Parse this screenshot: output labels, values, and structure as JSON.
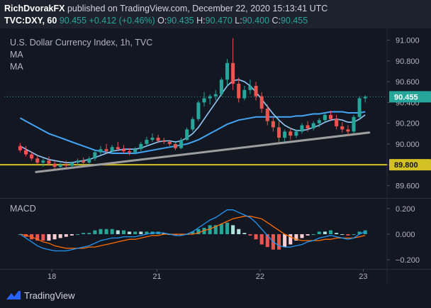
{
  "header": {
    "author": "RichDvorakFX",
    "published_text": "published on TradingView.com, December 22, 2020 15:13:41 UTC",
    "symbol": "TVC:DXY, 60",
    "last": "90.455",
    "change": "+0.412 (+0.46%)",
    "o_label": "O:",
    "o_value": "90.435",
    "h_label": "H:",
    "h_value": "90.470",
    "l_label": "L:",
    "l_value": "90.400",
    "c_label": "C:",
    "c_value": "90.455"
  },
  "legend": {
    "title": "U.S. Dollar Currency Index, 1h, TVC",
    "ma1": "MA",
    "ma2": "MA",
    "macd": "MACD"
  },
  "price_badge": "90.455",
  "support_badge": "89.800",
  "footer": {
    "brand": "TradingView"
  },
  "colors": {
    "background": "#131722",
    "up": "#26a69a",
    "down": "#ef5350",
    "ma_fast": "#90caf9",
    "ma_slow": "#42a5f5",
    "trendline": "#9e9e9e",
    "support": "#d4c224",
    "macd_line": "#2196f3",
    "signal_line": "#ff6d00"
  },
  "chart_data": [
    {
      "type": "candlestick",
      "ylim": [
        89.5,
        91.1
      ],
      "y_ticks": [
        89.6,
        89.8,
        90.0,
        90.2,
        90.4,
        90.6,
        90.8,
        91.0
      ],
      "y_tick_labels": [
        "89.600",
        "89.800",
        "90.000",
        "90.200",
        "90.400",
        "90.600",
        "90.800",
        "91.000"
      ],
      "x_tick_labels": [
        "18",
        "21",
        "22",
        "23"
      ],
      "x_tick_positions": [
        24,
        77,
        129,
        181
      ],
      "x_range": [
        0,
        193
      ],
      "candles": [
        [
          89.98,
          90.01,
          89.92,
          89.94
        ],
        [
          89.94,
          89.98,
          89.88,
          89.9
        ],
        [
          89.9,
          89.93,
          89.84,
          89.86
        ],
        [
          89.86,
          89.89,
          89.8,
          89.82
        ],
        [
          89.82,
          89.86,
          89.78,
          89.84
        ],
        [
          89.84,
          89.88,
          89.79,
          89.81
        ],
        [
          89.81,
          89.84,
          89.76,
          89.78
        ],
        [
          89.78,
          89.82,
          89.76,
          89.8
        ],
        [
          89.8,
          89.84,
          89.77,
          89.79
        ],
        [
          89.79,
          89.83,
          89.77,
          89.82
        ],
        [
          89.82,
          89.86,
          89.79,
          89.84
        ],
        [
          89.84,
          89.87,
          89.8,
          89.82
        ],
        [
          89.82,
          89.88,
          89.81,
          89.86
        ],
        [
          89.86,
          89.94,
          89.84,
          89.92
        ],
        [
          89.92,
          89.98,
          89.9,
          89.95
        ],
        [
          89.95,
          90.0,
          89.91,
          89.93
        ],
        [
          89.93,
          89.99,
          89.91,
          89.97
        ],
        [
          89.97,
          90.02,
          89.93,
          89.95
        ],
        [
          89.95,
          89.99,
          89.91,
          89.93
        ],
        [
          89.93,
          89.96,
          89.89,
          89.92
        ],
        [
          89.92,
          89.97,
          89.9,
          89.95
        ],
        [
          89.95,
          90.02,
          89.93,
          90.0
        ],
        [
          90.0,
          90.07,
          89.98,
          90.04
        ],
        [
          90.04,
          90.1,
          90.02,
          90.06
        ],
        [
          90.06,
          90.09,
          90.01,
          90.03
        ],
        [
          90.03,
          90.06,
          90.0,
          90.02
        ],
        [
          90.02,
          90.04,
          89.98,
          90.0
        ],
        [
          90.0,
          90.01,
          89.94,
          89.96
        ],
        [
          89.96,
          90.06,
          89.95,
          90.04
        ],
        [
          90.04,
          90.16,
          90.03,
          90.14
        ],
        [
          90.14,
          90.26,
          90.12,
          90.24
        ],
        [
          90.24,
          90.42,
          90.22,
          90.4
        ],
        [
          90.4,
          90.5,
          90.36,
          90.44
        ],
        [
          90.44,
          90.48,
          90.38,
          90.46
        ],
        [
          90.46,
          90.52,
          90.42,
          90.48
        ],
        [
          90.48,
          90.64,
          90.46,
          90.62
        ],
        [
          90.62,
          90.82,
          90.56,
          90.78
        ],
        [
          90.78,
          91.02,
          90.52,
          90.58
        ],
        [
          90.58,
          90.64,
          90.4,
          90.44
        ],
        [
          90.44,
          90.56,
          90.42,
          90.52
        ],
        [
          90.52,
          90.62,
          90.48,
          90.56
        ],
        [
          90.56,
          90.6,
          90.42,
          90.46
        ],
        [
          90.46,
          90.5,
          90.3,
          90.34
        ],
        [
          90.34,
          90.38,
          90.18,
          90.22
        ],
        [
          90.22,
          90.26,
          90.12,
          90.16
        ],
        [
          90.16,
          90.22,
          90.02,
          90.06
        ],
        [
          90.06,
          90.14,
          90.02,
          90.12
        ],
        [
          90.12,
          90.16,
          90.04,
          90.08
        ],
        [
          90.08,
          90.14,
          90.06,
          90.12
        ],
        [
          90.12,
          90.2,
          90.1,
          90.18
        ],
        [
          90.18,
          90.22,
          90.12,
          90.15
        ],
        [
          90.15,
          90.22,
          90.13,
          90.2
        ],
        [
          90.2,
          90.25,
          90.16,
          90.23
        ],
        [
          90.23,
          90.3,
          90.21,
          90.28
        ],
        [
          90.28,
          90.32,
          90.22,
          90.24
        ],
        [
          90.24,
          90.28,
          90.14,
          90.17
        ],
        [
          90.17,
          90.21,
          90.11,
          90.14
        ],
        [
          90.14,
          90.18,
          90.08,
          90.12
        ],
        [
          90.12,
          90.28,
          90.1,
          90.26
        ],
        [
          90.26,
          90.46,
          90.24,
          90.44
        ],
        [
          90.44,
          90.47,
          90.4,
          90.455
        ]
      ],
      "ma_fast": [
        89.98,
        89.95,
        89.92,
        89.89,
        89.87,
        89.85,
        89.84,
        89.83,
        89.82,
        89.82,
        89.83,
        89.84,
        89.85,
        89.87,
        89.89,
        89.91,
        89.93,
        89.94,
        89.95,
        89.95,
        89.95,
        89.96,
        89.98,
        90.0,
        90.02,
        90.03,
        90.03,
        90.02,
        90.03,
        90.06,
        90.1,
        90.16,
        90.24,
        90.32,
        90.4,
        90.48,
        90.56,
        90.61,
        90.62,
        90.6,
        90.56,
        90.5,
        90.43,
        90.36,
        90.29,
        90.23,
        90.18,
        90.15,
        90.13,
        90.13,
        90.14,
        90.16,
        90.18,
        90.21,
        90.23,
        90.24,
        90.23,
        90.21,
        90.21,
        90.24,
        90.28
      ],
      "ma_slow": [
        90.25,
        90.22,
        90.19,
        90.16,
        90.13,
        90.1,
        90.08,
        90.06,
        90.04,
        90.02,
        90.0,
        89.98,
        89.96,
        89.94,
        89.93,
        89.92,
        89.91,
        89.91,
        89.91,
        89.91,
        89.91,
        89.92,
        89.93,
        89.94,
        89.95,
        89.96,
        89.97,
        89.98,
        89.99,
        90.0,
        90.02,
        90.04,
        90.07,
        90.1,
        90.13,
        90.16,
        90.19,
        90.21,
        90.23,
        90.24,
        90.25,
        90.26,
        90.26,
        90.26,
        90.26,
        90.26,
        90.26,
        90.26,
        90.27,
        90.27,
        90.28,
        90.29,
        90.29,
        90.3,
        90.31,
        90.31,
        90.31,
        90.3,
        90.3,
        90.3,
        90.31
      ],
      "trendline": {
        "x": [
          16,
          184
        ],
        "y": [
          89.73,
          90.11
        ]
      },
      "support_level": 89.8,
      "current_price": 90.455
    },
    {
      "type": "macd",
      "ylim": [
        -0.26,
        0.26
      ],
      "y_ticks": [
        -0.2,
        0.0,
        0.2
      ],
      "y_tick_labels": [
        "−0.200",
        "0.000",
        "0.200"
      ],
      "macd": [
        0.0,
        -0.03,
        -0.06,
        -0.09,
        -0.11,
        -0.12,
        -0.13,
        -0.13,
        -0.13,
        -0.12,
        -0.11,
        -0.1,
        -0.09,
        -0.07,
        -0.05,
        -0.04,
        -0.03,
        -0.03,
        -0.02,
        -0.02,
        -0.02,
        -0.01,
        0.0,
        0.01,
        0.01,
        0.01,
        0.0,
        -0.01,
        -0.01,
        0.0,
        0.02,
        0.05,
        0.08,
        0.11,
        0.13,
        0.16,
        0.19,
        0.19,
        0.17,
        0.15,
        0.13,
        0.09,
        0.04,
        -0.01,
        -0.06,
        -0.09,
        -0.1,
        -0.1,
        -0.09,
        -0.08,
        -0.06,
        -0.05,
        -0.03,
        -0.02,
        -0.01,
        -0.02,
        -0.03,
        -0.04,
        -0.03,
        0.0,
        0.02
      ],
      "signal": [
        0.0,
        -0.01,
        -0.02,
        -0.04,
        -0.06,
        -0.07,
        -0.09,
        -0.1,
        -0.11,
        -0.11,
        -0.11,
        -0.11,
        -0.1,
        -0.1,
        -0.09,
        -0.08,
        -0.07,
        -0.06,
        -0.05,
        -0.04,
        -0.04,
        -0.03,
        -0.02,
        -0.01,
        -0.01,
        0.0,
        0.0,
        0.0,
        0.0,
        0.0,
        0.0,
        0.01,
        0.03,
        0.04,
        0.06,
        0.08,
        0.1,
        0.12,
        0.13,
        0.14,
        0.14,
        0.13,
        0.12,
        0.09,
        0.06,
        0.03,
        0.0,
        -0.02,
        -0.04,
        -0.05,
        -0.05,
        -0.05,
        -0.05,
        -0.04,
        -0.04,
        -0.03,
        -0.03,
        -0.03,
        -0.03,
        -0.02,
        -0.01
      ]
    }
  ]
}
